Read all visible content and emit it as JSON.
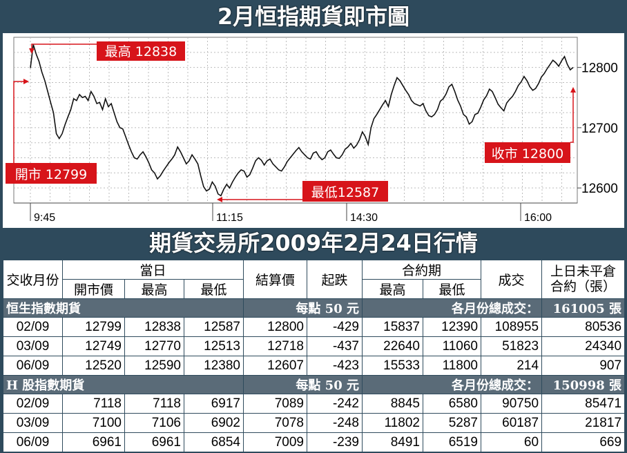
{
  "chart_title": "2月恒指期貨即市圖",
  "table_title": "期貨交易所2009年2月24日行情",
  "chart_data": {
    "type": "line",
    "x_ticks": [
      "9:45",
      "11:15",
      "14:30",
      "16:00"
    ],
    "y_ticks": [
      12600,
      12700,
      12800
    ],
    "ylim": [
      12575,
      12850
    ],
    "annotations": {
      "high": {
        "label": "最高",
        "value": 12838
      },
      "low": {
        "label": "最低",
        "value": 12587
      },
      "open": {
        "label": "開市",
        "value": 12799
      },
      "close": {
        "label": "收市",
        "value": 12800
      }
    },
    "series": [
      {
        "values": [
          12799,
          12838,
          12822,
          12810,
          12792,
          12778,
          12760,
          12742,
          12725,
          12690,
          12682,
          12690,
          12705,
          12718,
          12730,
          12748,
          12745,
          12755,
          12750,
          12752,
          12745,
          12760,
          12752,
          12740,
          12742,
          12730,
          12748,
          12735,
          12740,
          12725,
          12710,
          12700,
          12698,
          12685,
          12672,
          12660,
          12650,
          12648,
          12655,
          12660,
          12652,
          12642,
          12630,
          12625,
          12615,
          12620,
          12628,
          12635,
          12642,
          12648,
          12655,
          12668,
          12660,
          12650,
          12640,
          12645,
          12655,
          12648,
          12640,
          12620,
          12602,
          12595,
          12598,
          12610,
          12603,
          12590,
          12587,
          12598,
          12606,
          12600,
          12610,
          12618,
          12625,
          12630,
          12628,
          12618,
          12622,
          12633,
          12645,
          12650,
          12646,
          12638,
          12645,
          12648,
          12640,
          12635,
          12630,
          12628,
          12635,
          12644,
          12650,
          12656,
          12662,
          12667,
          12660,
          12655,
          12650,
          12648,
          12658,
          12660,
          12652,
          12647,
          12650,
          12660,
          12663,
          12656,
          12650,
          12649,
          12655,
          12664,
          12668,
          12674,
          12666,
          12671,
          12680,
          12693,
          12685,
          12672,
          12700,
          12715,
          12722,
          12730,
          12738,
          12745,
          12735,
          12755,
          12770,
          12783,
          12778,
          12770,
          12762,
          12755,
          12745,
          12740,
          12738,
          12736,
          12740,
          12728,
          12720,
          12718,
          12722,
          12730,
          12744,
          12748,
          12756,
          12768,
          12772,
          12760,
          12746,
          12736,
          12722,
          12718,
          12706,
          12710,
          12722,
          12724,
          12734,
          12746,
          12753,
          12764,
          12760,
          12750,
          12739,
          12733,
          12728,
          12741,
          12747,
          12752,
          12760,
          12770,
          12776,
          12785,
          12778,
          12768,
          12762,
          12765,
          12773,
          12784,
          12790,
          12798,
          12805,
          12812,
          12808,
          12802,
          12811,
          12818,
          12805,
          12796,
          12800
        ]
      }
    ]
  },
  "table": {
    "header": {
      "month": "交收月份",
      "day": "當日",
      "open": "開市價",
      "high": "最高",
      "low": "最低",
      "settle": "結算價",
      "change": "起跌",
      "contract": "合約期",
      "c_high": "最高",
      "c_low": "最低",
      "volume": "成交",
      "oi": "上日未平倉合約（張）"
    },
    "sections": [
      {
        "name": "恒生指數期貨",
        "per_point": "每點 50 元",
        "total_label": "各月份總成交：",
        "total": "161005 張",
        "rows": [
          {
            "month": "02/09",
            "open": "12799",
            "high": "12838",
            "low": "12587",
            "settle": "12800",
            "change": "-429",
            "c_high": "15837",
            "c_low": "12390",
            "volume": "108955",
            "oi": "80536"
          },
          {
            "month": "03/09",
            "open": "12749",
            "high": "12770",
            "low": "12513",
            "settle": "12718",
            "change": "-437",
            "c_high": "22640",
            "c_low": "11060",
            "volume": "51823",
            "oi": "24340"
          },
          {
            "month": "06/09",
            "open": "12520",
            "high": "12590",
            "low": "12380",
            "settle": "12607",
            "change": "-423",
            "c_high": "15533",
            "c_low": "11800",
            "volume": "214",
            "oi": "907"
          }
        ]
      },
      {
        "name": "H 股指數期貨",
        "per_point": "每點 50 元",
        "total_label": "各月份總成交：",
        "total": "150998 張",
        "rows": [
          {
            "month": "02/09",
            "open": "7118",
            "high": "7118",
            "low": "6917",
            "settle": "7089",
            "change": "-242",
            "c_high": "8845",
            "c_low": "6580",
            "volume": "90750",
            "oi": "85471"
          },
          {
            "month": "03/09",
            "open": "7100",
            "high": "7106",
            "low": "6902",
            "settle": "7078",
            "change": "-248",
            "c_high": "11802",
            "c_low": "5287",
            "volume": "60187",
            "oi": "21817"
          },
          {
            "month": "06/09",
            "open": "6961",
            "high": "6961",
            "low": "6854",
            "settle": "7009",
            "change": "-239",
            "c_high": "8491",
            "c_low": "6519",
            "volume": "60",
            "oi": "669"
          }
        ]
      }
    ]
  },
  "colors": {
    "frame": "#2e4a5c",
    "label_red": "#d7141a",
    "section": "#5a6b78",
    "line": "#111111"
  }
}
